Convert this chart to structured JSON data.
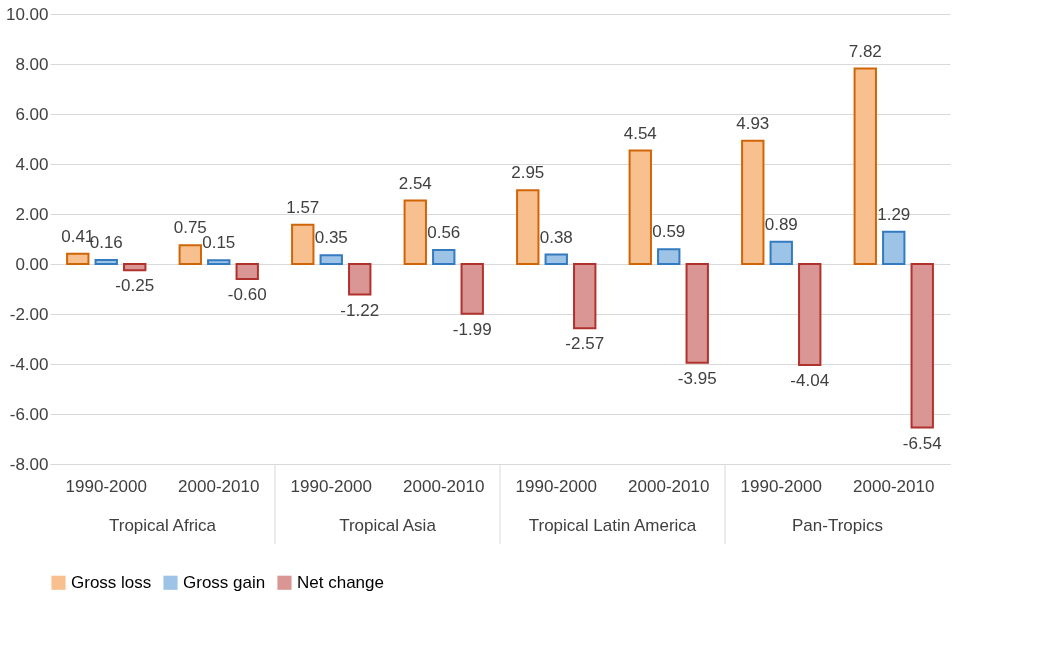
{
  "chart_data": {
    "type": "bar",
    "categories": [
      "1990-2000",
      "2000-2010",
      "1990-2000",
      "2000-2010",
      "1990-2000",
      "2000-2010",
      "1990-2000",
      "2000-2010"
    ],
    "series": [
      {
        "name": "Gross loss",
        "color": "#f8c08f",
        "values": [
          0.41,
          0.75,
          1.57,
          2.54,
          2.95,
          4.54,
          4.93,
          7.82
        ],
        "value_labels": [
          "0.41",
          "0.75",
          "1.57",
          "2.54",
          "2.95",
          "4.54",
          "4.93",
          "7.82"
        ]
      },
      {
        "name": "Gross gain",
        "color": "#9dc3e6",
        "values": [
          0.16,
          0.15,
          0.35,
          0.56,
          0.38,
          0.59,
          0.89,
          1.29
        ],
        "value_labels": [
          "0.16",
          "0.15",
          "0.35",
          "0.56",
          "0.38",
          "0.59",
          "0.89",
          "1.29"
        ]
      },
      {
        "name": "Net change",
        "color": "#d99694",
        "values": [
          -0.25,
          -0.6,
          -1.22,
          -1.99,
          -2.57,
          -3.95,
          -4.04,
          -6.54
        ],
        "value_labels": [
          "-0.25",
          "-0.60",
          "-1.22",
          "-1.99",
          "-2.57",
          "-3.95",
          "-4.04",
          "-6.54"
        ]
      }
    ],
    "annotations": [
      "Tropical Africa",
      "Tropical Asia",
      "Tropical Latin America",
      "Pan-Tropics"
    ],
    "ylim": [
      -8,
      10
    ],
    "yticks": [
      {
        "value": -8,
        "label": "-8.00"
      },
      {
        "value": -6,
        "label": "-6.00"
      },
      {
        "value": -4,
        "label": "-4.00"
      },
      {
        "value": -2,
        "label": "-2.00"
      },
      {
        "value": 0,
        "label": "0.00"
      },
      {
        "value": 2,
        "label": "2.00"
      },
      {
        "value": 4,
        "label": "4.00"
      },
      {
        "value": 6,
        "label": "6.00"
      },
      {
        "value": 8,
        "label": "8.00"
      },
      {
        "value": 10,
        "label": "10.00"
      }
    ],
    "grid": "y",
    "legend": "bottom"
  }
}
